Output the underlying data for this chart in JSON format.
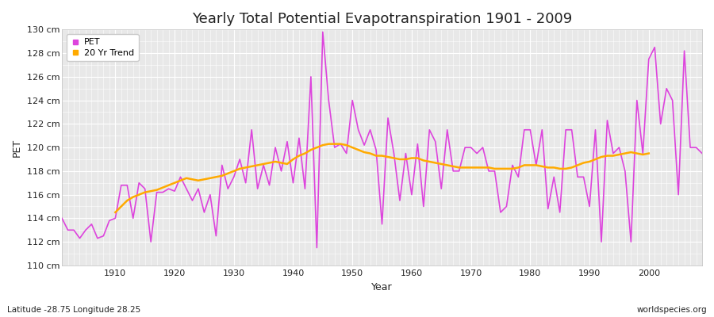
{
  "title": "Yearly Total Potential Evapotranspiration 1901 - 2009",
  "xlabel": "Year",
  "ylabel": "PET",
  "subtitle_left": "Latitude -28.75 Longitude 28.25",
  "subtitle_right": "worldspecies.org",
  "ylim": [
    110,
    130
  ],
  "ytick_step": 2,
  "years": [
    1901,
    1902,
    1903,
    1904,
    1905,
    1906,
    1907,
    1908,
    1909,
    1910,
    1911,
    1912,
    1913,
    1914,
    1915,
    1916,
    1917,
    1918,
    1919,
    1920,
    1921,
    1922,
    1923,
    1924,
    1925,
    1926,
    1927,
    1928,
    1929,
    1930,
    1931,
    1932,
    1933,
    1934,
    1935,
    1936,
    1937,
    1938,
    1939,
    1940,
    1941,
    1942,
    1943,
    1944,
    1945,
    1946,
    1947,
    1948,
    1949,
    1950,
    1951,
    1952,
    1953,
    1954,
    1955,
    1956,
    1957,
    1958,
    1959,
    1960,
    1961,
    1962,
    1963,
    1964,
    1965,
    1966,
    1967,
    1968,
    1969,
    1970,
    1971,
    1972,
    1973,
    1974,
    1975,
    1976,
    1977,
    1978,
    1979,
    1980,
    1981,
    1982,
    1983,
    1984,
    1985,
    1986,
    1987,
    1988,
    1989,
    1990,
    1991,
    1992,
    1993,
    1994,
    1995,
    1996,
    1997,
    1998,
    1999,
    2000,
    2001,
    2002,
    2003,
    2004,
    2005,
    2006,
    2007,
    2008,
    2009
  ],
  "pet": [
    114.0,
    113.0,
    113.0,
    112.3,
    113.0,
    113.5,
    112.3,
    112.5,
    113.8,
    114.0,
    116.8,
    116.8,
    114.0,
    117.0,
    116.5,
    112.0,
    116.2,
    116.2,
    116.5,
    116.3,
    117.5,
    116.5,
    115.5,
    116.5,
    114.5,
    116.0,
    112.5,
    118.5,
    116.5,
    117.5,
    119.0,
    117.0,
    121.5,
    116.5,
    118.5,
    116.8,
    120.0,
    118.0,
    120.5,
    117.0,
    120.8,
    116.5,
    126.0,
    111.5,
    129.8,
    124.0,
    120.0,
    120.3,
    119.5,
    124.0,
    121.5,
    120.2,
    121.5,
    119.8,
    113.5,
    122.5,
    119.5,
    115.5,
    119.5,
    116.0,
    120.3,
    115.0,
    121.5,
    120.5,
    116.5,
    121.5,
    118.0,
    118.0,
    120.0,
    120.0,
    119.5,
    120.0,
    118.0,
    118.0,
    114.5,
    115.0,
    118.5,
    117.5,
    121.5,
    121.5,
    118.5,
    121.5,
    114.8,
    117.5,
    114.5,
    121.5,
    121.5,
    117.5,
    117.5,
    115.0,
    121.5,
    112.0,
    122.3,
    119.5,
    120.0,
    118.0,
    112.0,
    124.0,
    119.5,
    127.5,
    128.5,
    122.0,
    125.0,
    124.0,
    116.0,
    128.2,
    120.0,
    120.0,
    119.5
  ],
  "trend_years": [
    1910,
    1911,
    1912,
    1913,
    1914,
    1915,
    1916,
    1917,
    1918,
    1919,
    1920,
    1921,
    1922,
    1923,
    1924,
    1925,
    1926,
    1927,
    1928,
    1929,
    1930,
    1931,
    1932,
    1933,
    1934,
    1935,
    1936,
    1937,
    1938,
    1939,
    1940,
    1941,
    1942,
    1943,
    1944,
    1945,
    1946,
    1947,
    1948,
    1949,
    1950,
    1951,
    1952,
    1953,
    1954,
    1955,
    1956,
    1957,
    1958,
    1959,
    1960,
    1961,
    1962,
    1963,
    1964,
    1965,
    1966,
    1967,
    1968,
    1969,
    1970,
    1971,
    1972,
    1973,
    1974,
    1975,
    1976,
    1977,
    1978,
    1979,
    1980,
    1981,
    1982,
    1983,
    1984,
    1985,
    1986,
    1987,
    1988,
    1989,
    1990,
    1991,
    1992,
    1993,
    1994,
    1995,
    1996,
    1997,
    1998,
    1999,
    2000
  ],
  "trend": [
    114.5,
    115.0,
    115.5,
    115.8,
    116.0,
    116.2,
    116.3,
    116.4,
    116.6,
    116.8,
    117.0,
    117.2,
    117.4,
    117.3,
    117.2,
    117.3,
    117.4,
    117.5,
    117.6,
    117.8,
    118.0,
    118.2,
    118.3,
    118.4,
    118.5,
    118.6,
    118.7,
    118.8,
    118.7,
    118.6,
    119.0,
    119.3,
    119.5,
    119.8,
    120.0,
    120.2,
    120.3,
    120.3,
    120.3,
    120.2,
    120.0,
    119.8,
    119.6,
    119.5,
    119.3,
    119.3,
    119.2,
    119.1,
    119.0,
    119.0,
    119.1,
    119.1,
    118.9,
    118.8,
    118.7,
    118.6,
    118.5,
    118.4,
    118.3,
    118.3,
    118.3,
    118.3,
    118.3,
    118.3,
    118.2,
    118.2,
    118.2,
    118.2,
    118.3,
    118.5,
    118.5,
    118.5,
    118.4,
    118.3,
    118.3,
    118.2,
    118.2,
    118.3,
    118.5,
    118.7,
    118.8,
    119.0,
    119.2,
    119.3,
    119.3,
    119.4,
    119.5,
    119.6,
    119.5,
    119.4,
    119.5
  ],
  "pet_color": "#dd44dd",
  "trend_color": "#ffaa00",
  "fig_bg_color": "#ffffff",
  "plot_bg_color": "#e8e8e8",
  "grid_color": "#ffffff",
  "text_color": "#222222",
  "title_fontsize": 13,
  "axis_label_fontsize": 9,
  "tick_fontsize": 8,
  "subtitle_fontsize": 7.5,
  "legend_fontsize": 8,
  "pet_linewidth": 1.2,
  "trend_linewidth": 1.8
}
